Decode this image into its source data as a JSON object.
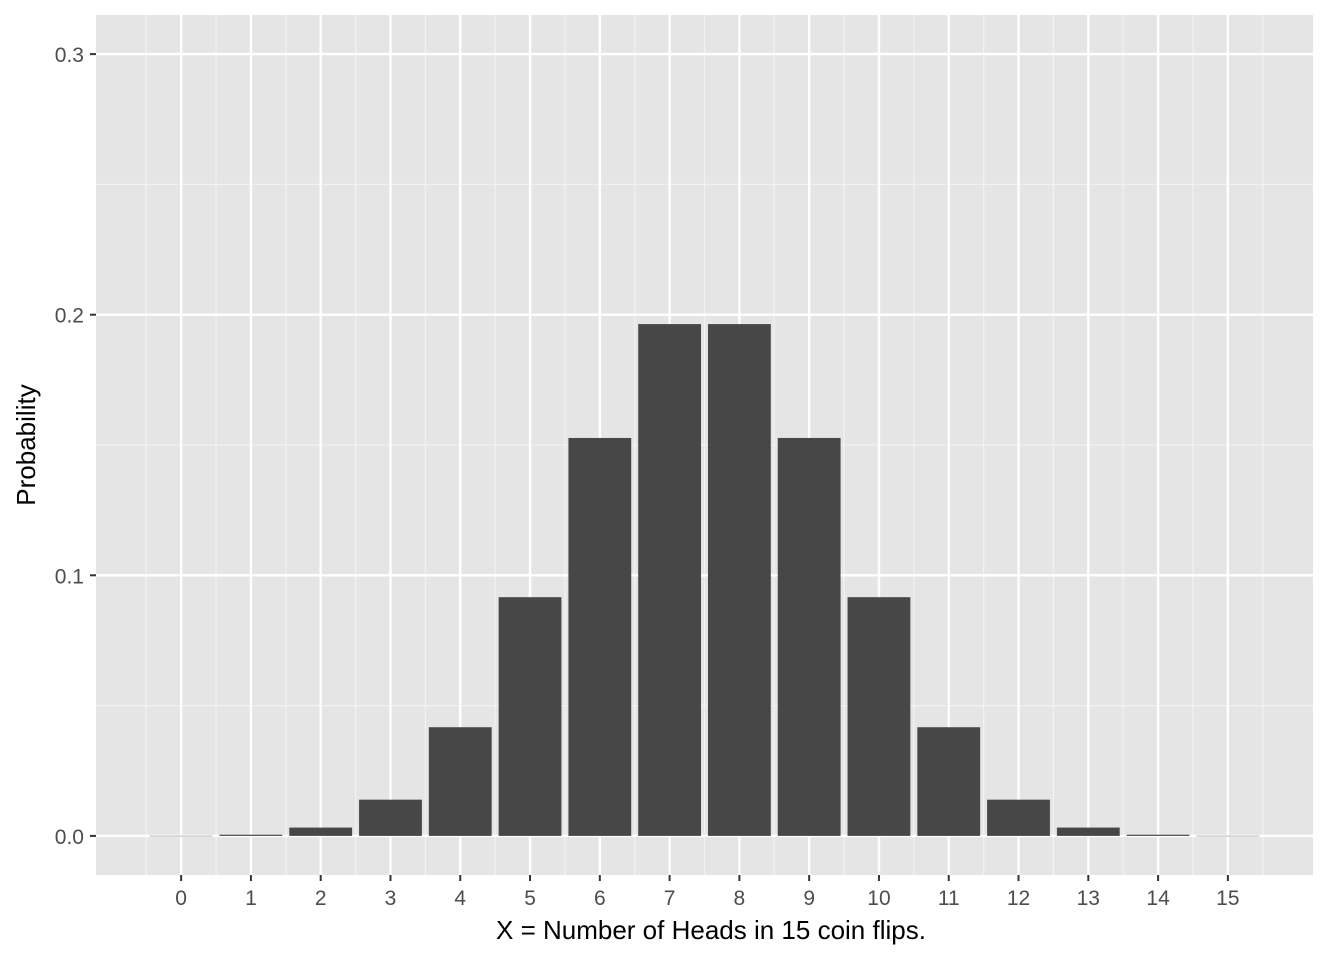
{
  "chart_data": {
    "type": "bar",
    "xlabel": "X = Number of Heads in 15  coin flips.",
    "ylabel": "Probability",
    "categories": [
      "0",
      "1",
      "2",
      "3",
      "4",
      "5",
      "6",
      "7",
      "8",
      "9",
      "10",
      "11",
      "12",
      "13",
      "14",
      "15"
    ],
    "values": [
      3e-05,
      0.00046,
      0.0032,
      0.0139,
      0.0417,
      0.0916,
      0.1527,
      0.1964,
      0.1964,
      0.1527,
      0.0916,
      0.0417,
      0.0139,
      0.0032,
      0.00046,
      3e-05
    ],
    "yticks": [
      0.0,
      0.1,
      0.2,
      0.3
    ],
    "ytick_labels": [
      "0.0",
      "0.1",
      "0.2",
      "0.3"
    ],
    "ylim": [
      -0.015,
      0.315
    ],
    "xlim": [
      -1.22,
      16.22
    ],
    "grid": true,
    "colors": {
      "panel_background": "#e5e5e5",
      "grid_major": "#ffffff",
      "grid_minor": "#f2f2f2",
      "bar_fill": "#474747",
      "tick_label": "#4d4d4d",
      "axis_title": "#000000"
    }
  }
}
